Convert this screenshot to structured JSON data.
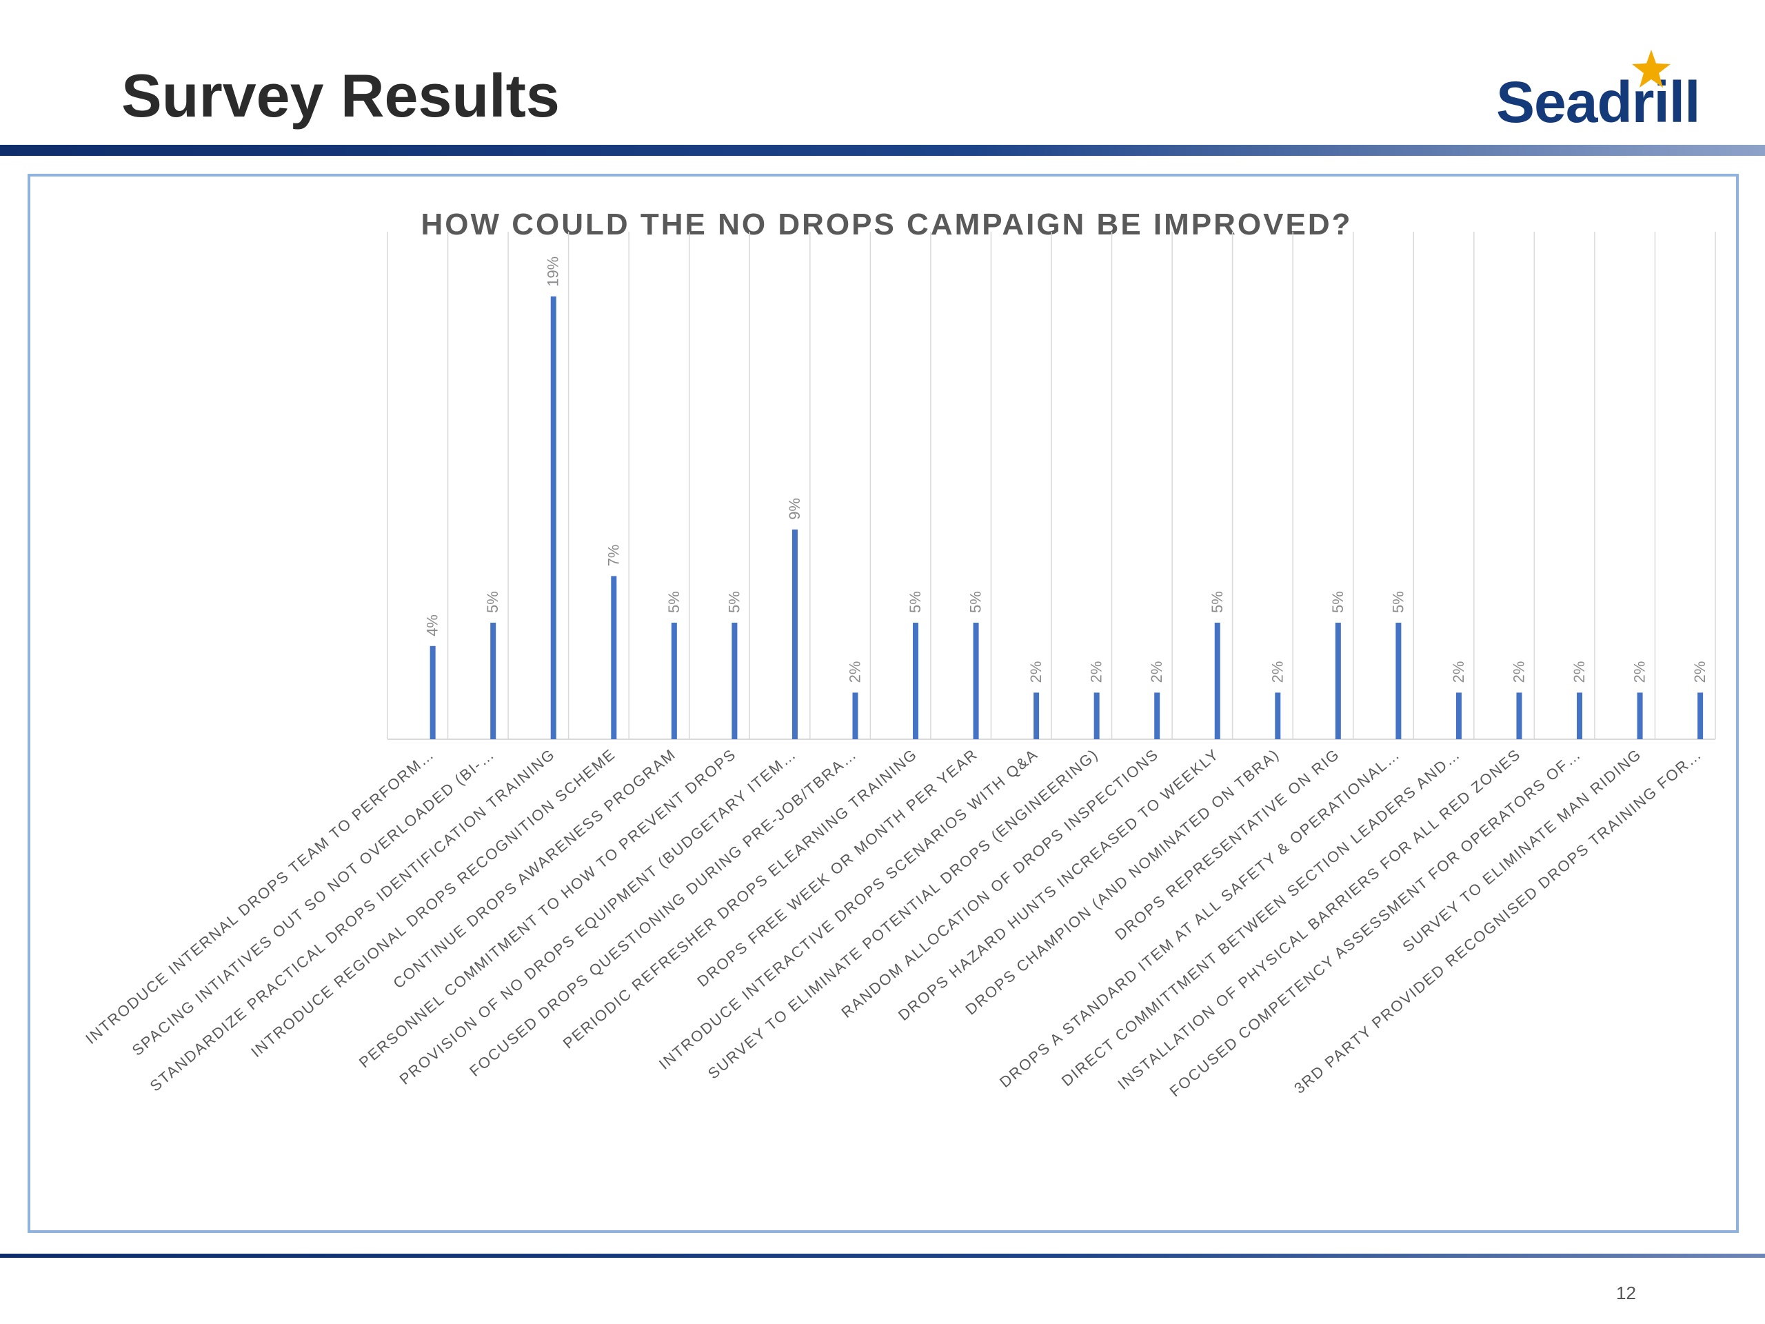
{
  "slide": {
    "title": "Survey Results",
    "logo_text": "Seadrill",
    "page_number": "12"
  },
  "colors": {
    "bar": "#4472c4",
    "brand_navy": "#143a7a",
    "star": "#f2a900",
    "frame_border": "#8fb3dc",
    "grid": "#d9d9d9"
  },
  "chart_data": {
    "type": "bar",
    "title": "HOW COULD THE NO DROPS CAMPAIGN BE IMPROVED?",
    "xlabel": "",
    "ylabel": "",
    "grid": "vertical",
    "ylim": [
      0,
      20
    ],
    "categories": [
      "INTRODUCE INTERNAL DROPS TEAM TO PERFORM…",
      "SPACING INTIATIVES OUT SO NOT OVERLOADED (BI-…",
      "STANDARDIZE PRACTICAL DROPS IDENTIFICATION TRAINING",
      "INTRODUCE REGIONAL DROPS RECOGNITION SCHEME",
      "CONTINUE DROPS AWARENESS PROGRAM",
      "PERSONNEL COMMITMENT TO HOW TO PREVENT DROPS",
      "PROVISION OF NO DROPS EQUIPMENT (BUDGETARY ITEM…",
      "FOCUSED DROPS QUESTIONING DURING PRE-JOB/TBRA…",
      "PERIODIC REFRESHER DROPS ELEARNING TRAINING",
      "DROPS FREE WEEK OR MONTH PER YEAR",
      "INTRODUCE INTERACTIVE DROPS SCENARIOS WITH Q&A",
      "SURVEY TO ELIMINATE POTENTIAL DROPS (ENGINEERING)",
      "RANDOM ALLOCATION OF DROPS INSPECTIONS",
      "DROPS HAZARD HUNTS INCREASED TO WEEKLY",
      "DROPS CHAMPION (AND NOMINATED ON TBRA)",
      "DROPS REPRESENTATIVE ON RIG",
      "DROPS A STANDARD ITEM AT ALL SAFETY & OPERATIONAL…",
      "DIRECT COMMITTMENT BETWEEN SECTION LEADERS AND…",
      "INSTALLATION OF PHYSICAL BARRIERS FOR ALL RED ZONES",
      "FOCUSED COMPETENCY ASSESSMENT FOR OPERATORS OF…",
      "SURVEY TO ELIMINATE MAN RIDING",
      "3RD PARTY PROVIDED RECOGNISED DROPS TRAINING FOR…"
    ],
    "values": [
      4,
      5,
      19,
      7,
      5,
      5,
      9,
      2,
      5,
      5,
      2,
      2,
      2,
      5,
      2,
      5,
      5,
      2,
      2,
      2,
      2,
      2
    ],
    "data_labels": [
      "4%",
      "5%",
      "19%",
      "7%",
      "5%",
      "5%",
      "9%",
      "2%",
      "5%",
      "5%",
      "2%",
      "2%",
      "2%",
      "5%",
      "2%",
      "5%",
      "5%",
      "2%",
      "2%",
      "2%",
      "2%",
      "2%"
    ]
  }
}
